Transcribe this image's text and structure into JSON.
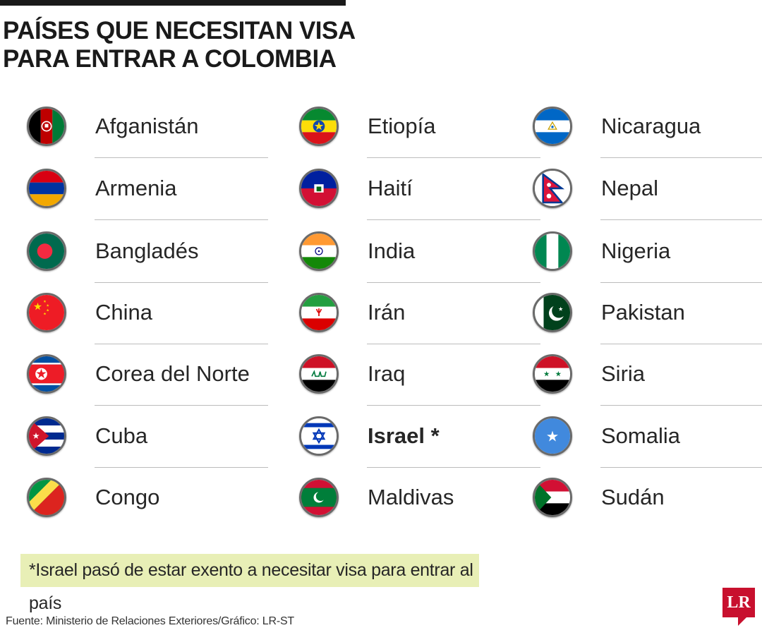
{
  "title": {
    "line1": "PAÍSES QUE NECESITAN VISA",
    "line2": "PARA ENTRAR A COLOMBIA"
  },
  "columns": [
    [
      {
        "name": "Afganistán",
        "flag": "afghanistan-flag"
      },
      {
        "name": "Armenia",
        "flag": "armenia-flag"
      },
      {
        "name": "Bangladés",
        "flag": "bangladesh-flag"
      },
      {
        "name": "China",
        "flag": "china-flag"
      },
      {
        "name": "Corea del Norte",
        "flag": "north-korea-flag"
      },
      {
        "name": "Cuba",
        "flag": "cuba-flag"
      },
      {
        "name": "Congo",
        "flag": "congo-flag"
      }
    ],
    [
      {
        "name": "Etiopía",
        "flag": "ethiopia-flag"
      },
      {
        "name": "Haití",
        "flag": "haiti-flag"
      },
      {
        "name": "India",
        "flag": "india-flag"
      },
      {
        "name": "Irán",
        "flag": "iran-flag"
      },
      {
        "name": "Iraq",
        "flag": "iraq-flag"
      },
      {
        "name": "Israel *",
        "flag": "israel-flag",
        "highlight": true
      },
      {
        "name": "Maldivas",
        "flag": "maldives-flag"
      }
    ],
    [
      {
        "name": "Nicaragua",
        "flag": "nicaragua-flag"
      },
      {
        "name": "Nepal",
        "flag": "nepal-flag"
      },
      {
        "name": "Nigeria",
        "flag": "nigeria-flag"
      },
      {
        "name": "Pakistan",
        "flag": "pakistan-flag"
      },
      {
        "name": "Siria",
        "flag": "syria-flag"
      },
      {
        "name": "Somalia",
        "flag": "somalia-flag"
      },
      {
        "name": "Sudán",
        "flag": "sudan-flag"
      }
    ]
  ],
  "note": "*Israel pasó de estar exento a necesitar visa para entrar al país",
  "source": "Fuente: Ministerio de Relaciones Exteriores/Gráfico: LR-ST",
  "logo": "LR",
  "colors": {
    "note_bg": "#e8efb6",
    "logo_red": "#c8102e",
    "divider": "#bcbcbc"
  }
}
